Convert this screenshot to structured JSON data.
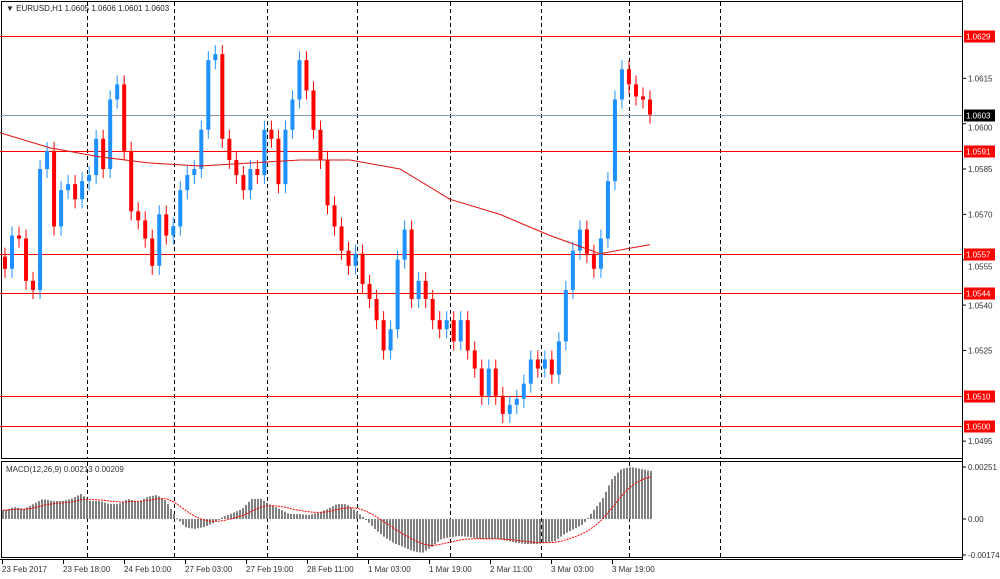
{
  "header": {
    "symbol": "EURUSD,H1",
    "ohlc": "1.0605 1.0606 1.0601 1.0603"
  },
  "macd_header": "MACD(12,26,9) 0.00213 0.00209",
  "colors": {
    "up": "#1e90ff",
    "down": "#ff0000",
    "level_line": "#ff0000",
    "current_price_bg": "#000000",
    "ma": "#e01010",
    "macd_hist": "#808080",
    "macd_signal": "#ff0000"
  },
  "price_axis": {
    "ticks": [
      "1.0615",
      "1.0600",
      "1.0585",
      "1.0570",
      "1.0555",
      "1.0540",
      "1.0525",
      "1.0495"
    ],
    "levels": [
      "1.0629",
      "1.0591",
      "1.0557",
      "1.0544",
      "1.0510",
      "1.0500"
    ],
    "current_price": "1.0603"
  },
  "macd_axis": {
    "ticks": [
      "0.00251",
      "0.00",
      "-0.00174"
    ]
  },
  "time_axis": [
    "23 Feb 2017",
    "23 Feb 18:00",
    "24 Feb 10:00",
    "27 Feb 03:00",
    "27 Feb 19:00",
    "28 Feb 11:00",
    "1 Mar 03:00",
    "1 Mar 19:00",
    "2 Mar 11:00",
    "3 Mar 03:00",
    "3 Mar 19:00"
  ],
  "chart_data": {
    "type": "candlestick",
    "closes": [
      1.0552,
      1.0563,
      1.0562,
      1.0548,
      1.0545,
      1.0585,
      1.0591,
      1.0566,
      1.0578,
      1.058,
      1.0575,
      1.0581,
      1.0583,
      1.0595,
      1.0585,
      1.0608,
      1.0613,
      1.0591,
      1.0571,
      1.0568,
      1.0562,
      1.0553,
      1.057,
      1.0563,
      1.0566,
      1.0578,
      1.0583,
      1.0585,
      1.0598,
      1.0621,
      1.0623,
      1.0595,
      1.0588,
      1.0583,
      1.0578,
      1.0585,
      1.0583,
      1.0598,
      1.0595,
      1.058,
      1.0598,
      1.0608,
      1.0621,
      1.0611,
      1.0598,
      1.0588,
      1.0573,
      1.0566,
      1.0558,
      1.0553,
      1.0557,
      1.0547,
      1.0542,
      1.0535,
      1.0525,
      1.0532,
      1.0555,
      1.0565,
      1.0542,
      1.0548,
      1.0542,
      1.0535,
      1.0532,
      1.0535,
      1.0528,
      1.0535,
      1.0525,
      1.0519,
      1.051,
      1.0519,
      1.051,
      1.0504,
      1.0507,
      1.0509,
      1.0514,
      1.0522,
      1.0519,
      1.0522,
      1.0517,
      1.0528,
      1.0545,
      1.0558,
      1.0565,
      1.0557,
      1.0552,
      1.0562,
      1.0581,
      1.0608,
      1.0618,
      1.0613,
      1.0609,
      1.0608,
      1.0603
    ],
    "moving_average": [
      1.0597,
      1.0592,
      1.0589,
      1.0587,
      1.0586,
      1.0587,
      1.0588,
      1.0588,
      1.0585,
      1.0575,
      1.057,
      1.0563,
      1.0557,
      1.056
    ],
    "macd_histogram": [
      0.00043,
      0.00058,
      0.00048,
      0.00072,
      0.00097,
      0.00087,
      0.00087,
      0.00097,
      0.00121,
      0.00087,
      0.00087,
      0.00072,
      0.00072,
      0.00097,
      0.00082,
      0.00106,
      0.00116,
      0.00087,
      0.0001,
      -0.00039,
      -0.00048,
      -0.00039,
      -0.00019,
      0.0001,
      0.00029,
      0.00048,
      0.00097,
      0.00097,
      0.00068,
      0.00048,
      0.00024,
      0.00024,
      0.00019,
      0.00029,
      0.00048,
      0.00072,
      0.00072,
      0.00039,
      0,
      -0.00048,
      -0.00087,
      -0.00116,
      -0.00135,
      -0.00155,
      -0.00164,
      -0.00135,
      -0.00097,
      -0.00087,
      -0.00082,
      -0.00087,
      -0.00097,
      -0.00097,
      -0.00097,
      -0.00106,
      -0.00116,
      -0.00121,
      -0.00121,
      -0.00116,
      -0.00106,
      -0.00072,
      -0.00048,
      -0.00024,
      0.00039,
      0.00097,
      0.00193,
      0.00242,
      0.00251,
      0.00242,
      0.00232
    ],
    "price_range": [
      1.049,
      1.064
    ],
    "macd_range": [
      -0.00174,
      0.00251
    ]
  }
}
